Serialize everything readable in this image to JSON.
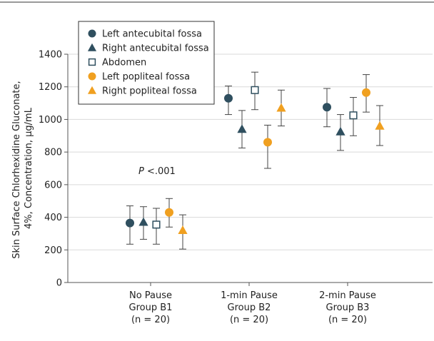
{
  "chart_data": {
    "type": "scatter",
    "ylabel_line1": "Skin Surface Chlorhexidine Gluconate,",
    "ylabel_line2": "4%, Concentration, µg/mL",
    "ylim": [
      0,
      1400
    ],
    "yticks": [
      "0",
      "200",
      "400",
      "600",
      "800",
      "1000",
      "1200",
      "1400"
    ],
    "ytick_values": [
      0,
      200,
      400,
      600,
      800,
      1000,
      1200,
      1400
    ],
    "grid": true,
    "legend_placement": "top-left",
    "categories": [
      {
        "line1": "No Pause",
        "line2": "Group B1",
        "line3": "(n = 20)"
      },
      {
        "line1": "1-min Pause",
        "line2": "Group B2",
        "line3": "(n = 20)"
      },
      {
        "line1": "2-min Pause",
        "line2": "Group B3",
        "line3": "(n = 20)"
      }
    ],
    "annotation": {
      "p_italic": "P",
      "p_rest": " <.001"
    },
    "series": [
      {
        "name": "Left antecubital fossa",
        "marker": "circle",
        "color": "#2f4f5f",
        "values": [
          365,
          1130,
          1075
        ],
        "lower": [
          235,
          1030,
          955
        ],
        "upper": [
          470,
          1205,
          1190
        ]
      },
      {
        "name": "Right antecubital fossa",
        "marker": "triangle",
        "color": "#2f4f5f",
        "values": [
          370,
          940,
          925
        ],
        "lower": [
          265,
          825,
          810
        ],
        "upper": [
          465,
          1055,
          1030
        ]
      },
      {
        "name": "Abdomen",
        "marker": "square-open",
        "color": "#2f4f5f",
        "values": [
          355,
          1180,
          1025
        ],
        "lower": [
          235,
          1060,
          900
        ],
        "upper": [
          455,
          1290,
          1135
        ]
      },
      {
        "name": "Left popliteal fossa",
        "marker": "circle",
        "color": "#f0a020",
        "values": [
          430,
          860,
          1165
        ],
        "lower": [
          340,
          700,
          1045
        ],
        "upper": [
          515,
          965,
          1275
        ]
      },
      {
        "name": "Right popliteal fossa",
        "marker": "triangle",
        "color": "#f0a020",
        "values": [
          320,
          1070,
          960
        ],
        "lower": [
          205,
          960,
          840
        ],
        "upper": [
          415,
          1180,
          1085
        ]
      }
    ]
  }
}
